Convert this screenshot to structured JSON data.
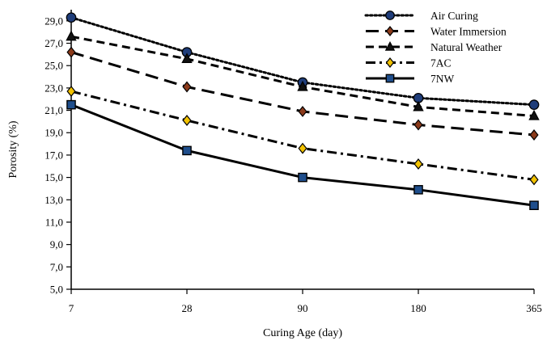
{
  "chart_data": {
    "type": "line",
    "xlabel": "Curing Age (day)",
    "ylabel": "Porosity (%)",
    "categories": [
      "7",
      "28",
      "90",
      "180",
      "365"
    ],
    "ylim": [
      5.0,
      30.0
    ],
    "yticks": [
      "5,0",
      "7,0",
      "9,0",
      "11,0",
      "13,0",
      "15,0",
      "17,0",
      "19,0",
      "21,0",
      "23,0",
      "25,0",
      "27,0",
      "29,0"
    ],
    "ytick_values": [
      5,
      7,
      9,
      11,
      13,
      15,
      17,
      19,
      21,
      23,
      25,
      27,
      29
    ],
    "grid": false,
    "legend_position": "top-right",
    "series": [
      {
        "name": "Air Curing",
        "values": [
          29.3,
          26.2,
          23.5,
          22.1,
          21.5
        ],
        "line_style": "dotted",
        "marker": "circle",
        "marker_fill": "#1f3d7a",
        "color": "#000000"
      },
      {
        "name": "Water Immersion",
        "values": [
          26.2,
          23.1,
          20.9,
          19.7,
          18.8
        ],
        "line_style": "long-dash",
        "marker": "diamond",
        "marker_fill": "#8b3a1a",
        "color": "#000000"
      },
      {
        "name": "Natural Weather",
        "values": [
          27.6,
          25.6,
          23.1,
          21.3,
          20.5
        ],
        "line_style": "dash",
        "marker": "triangle",
        "marker_fill": "#111111",
        "color": "#000000"
      },
      {
        "name": "7AC",
        "values": [
          22.7,
          20.1,
          17.6,
          16.2,
          14.8
        ],
        "line_style": "dash-dot",
        "marker": "diamond",
        "marker_fill": "#f2c200",
        "color": "#000000"
      },
      {
        "name": "7NW",
        "values": [
          21.5,
          17.4,
          15.0,
          13.9,
          12.5
        ],
        "line_style": "solid",
        "marker": "square",
        "marker_fill": "#1f4e8c",
        "color": "#000000"
      }
    ]
  }
}
